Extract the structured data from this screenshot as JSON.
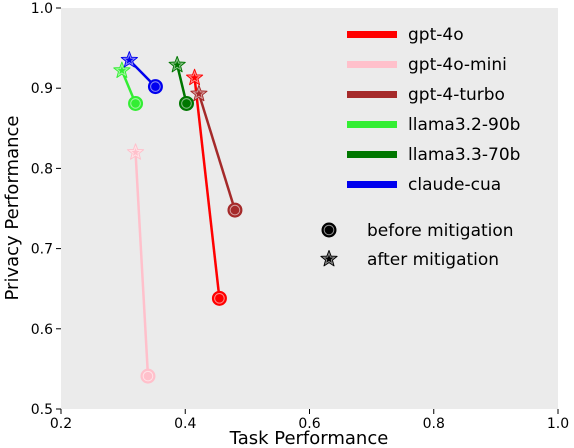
{
  "chart_data": {
    "type": "scatter",
    "xlabel": "Task Performance",
    "ylabel": "Privacy Performance",
    "xlim": [
      0.2,
      1.0
    ],
    "ylim": [
      0.5,
      1.0
    ],
    "xticks": [
      "0.2",
      "0.4",
      "0.6",
      "0.8",
      "1.0"
    ],
    "yticks": [
      "0.5",
      "0.6",
      "0.7",
      "0.8",
      "0.9",
      "1.0"
    ],
    "grid": false,
    "background": "#ebebeb",
    "legend_position": "upper-right",
    "marker_legend": [
      {
        "marker": "circle",
        "label": "before mitigation"
      },
      {
        "marker": "star",
        "label": "after mitigation"
      }
    ],
    "series": [
      {
        "name": "gpt-4o",
        "color": "#ff0000",
        "before": [
          0.455,
          0.638
        ],
        "after": [
          0.415,
          0.913
        ]
      },
      {
        "name": "gpt-4o-mini",
        "color": "#ffc0cb",
        "before": [
          0.34,
          0.541
        ],
        "after": [
          0.32,
          0.82
        ]
      },
      {
        "name": "gpt-4-turbo",
        "color": "#a52a2a",
        "before": [
          0.48,
          0.748
        ],
        "after": [
          0.422,
          0.893
        ]
      },
      {
        "name": "llama3.2-90b",
        "color": "#33ee33",
        "before": [
          0.32,
          0.881
        ],
        "after": [
          0.298,
          0.922
        ]
      },
      {
        "name": "llama3.3-70b",
        "color": "#007700",
        "before": [
          0.402,
          0.881
        ],
        "after": [
          0.387,
          0.929
        ]
      },
      {
        "name": "claude-cua",
        "color": "#0000ee",
        "before": [
          0.352,
          0.902
        ],
        "after": [
          0.31,
          0.935
        ]
      }
    ]
  }
}
